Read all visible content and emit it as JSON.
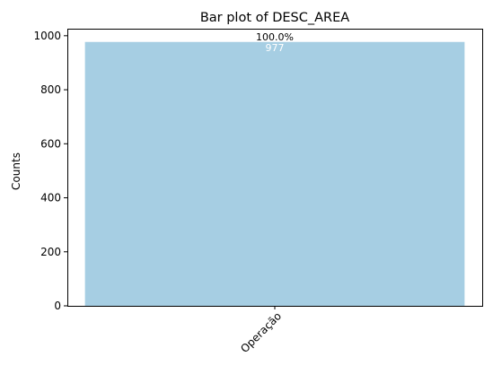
{
  "chart_data": {
    "type": "bar",
    "title": "Bar plot of DESC_AREA",
    "xlabel": "",
    "ylabel": "Counts",
    "categories": [
      "Operação"
    ],
    "values": [
      977
    ],
    "percent_labels": [
      "100.0%"
    ],
    "value_labels": [
      "977"
    ],
    "ylim": [
      0,
      1026
    ],
    "yticks": [
      0,
      200,
      400,
      600,
      800,
      1000
    ],
    "ytick_labels": [
      "0",
      "200",
      "400",
      "600",
      "800",
      "1000"
    ],
    "bar_color": "#a6cee3",
    "grid": false,
    "legend": "none",
    "xtick_rotation_deg": 45
  }
}
